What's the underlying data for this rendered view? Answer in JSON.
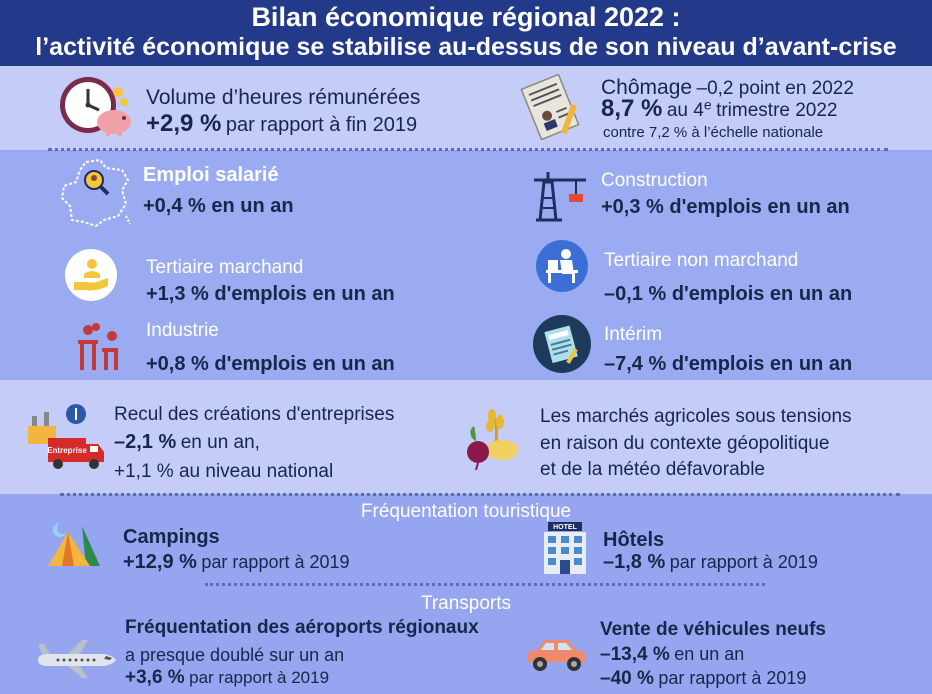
{
  "header": {
    "title_line1": "Bilan économique régional 2022 :",
    "title_line2": "l’activité économique se stabilise au-dessus de son niveau d’avant-crise"
  },
  "heures": {
    "label": "Volume d’heures rémunérées",
    "value": "+2,9 %",
    "suffix": "par rapport à fin 2019"
  },
  "chomage": {
    "label": "Chômage",
    "change": "–0,2 point en 2022",
    "rate": "8,7 %",
    "period_prefix": "au 4",
    "period_sup": "e",
    "period_suffix": "trimestre 2022",
    "national": "contre 7,2 % à l’échelle nationale"
  },
  "emploi": {
    "salarie": {
      "label": "Emploi salarié",
      "value": "+0,4 % en un an"
    },
    "construction": {
      "label": "Construction",
      "value": "+0,3 % d'emplois en un an"
    },
    "tertiaire_marchand": {
      "label": "Tertiaire marchand",
      "value": "+1,3 % d'emplois en un an"
    },
    "tertiaire_non_marchand": {
      "label": "Tertiaire non marchand",
      "value": "–0,1 % d'emplois en un an"
    },
    "industrie": {
      "label": "Industrie",
      "value": "+0,8 % d'emplois en un an"
    },
    "interim": {
      "label": "Intérim",
      "value": "–7,4 % d'emplois en un an"
    }
  },
  "entreprises": {
    "label": "Recul des créations d'entreprises",
    "value": "–2,1 %",
    "value_suffix": "en un an,",
    "national": "+1,1 % au niveau national",
    "truck_text": "Entreprise"
  },
  "agricole": {
    "line1": "Les marchés agricoles sous tensions",
    "line2": "en raison du contexte géopolitique",
    "line3": "et de la météo défavorable"
  },
  "tourisme": {
    "heading": "Fréquentation touristique",
    "campings": {
      "label": "Campings",
      "value": "+12,9 %",
      "suffix": "par rapport à 2019"
    },
    "hotels": {
      "label": "Hôtels",
      "value": "–1,8 %",
      "suffix": "par rapport à 2019",
      "sign_text": "HOTEL"
    }
  },
  "transports": {
    "heading": "Transports",
    "aeroports": {
      "label": "Fréquentation des aéroports régionaux",
      "line2": "a presque doublé sur un an",
      "value": "+3,6 %",
      "suffix": "par rapport à 2019"
    },
    "vehicules": {
      "label": "Vente de véhicules neufs",
      "value1": "–13,4 %",
      "suffix1": "en un an",
      "value2": "–40 %",
      "suffix2": "par rapport à 2019"
    }
  },
  "colors": {
    "header": "#233a8a",
    "band_light": "#c4ccf7",
    "band_mid": "#9aabf2",
    "text_dark": "#16284a"
  }
}
